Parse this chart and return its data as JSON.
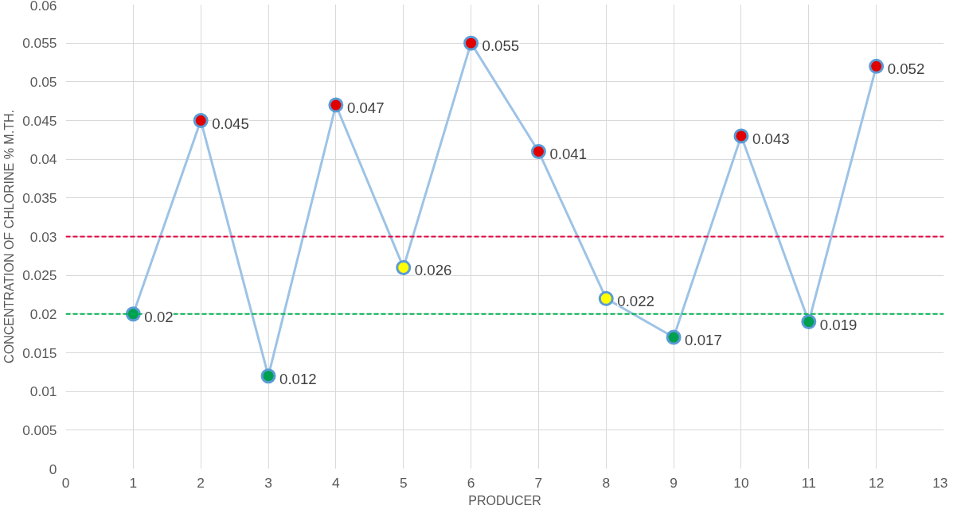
{
  "chart_data": {
    "type": "line",
    "xlabel": "PRODUCER",
    "ylabel": "CONCENTRATION OF CHLORINE % M.TH.",
    "x": [
      1,
      2,
      3,
      4,
      5,
      6,
      7,
      8,
      9,
      10,
      11,
      12
    ],
    "series": [
      {
        "color": "#9dc3e6",
        "values": [
          0.02,
          0.045,
          0.012,
          0.047,
          0.026,
          0.055,
          0.041,
          0.022,
          0.017,
          0.043,
          0.019,
          0.052
        ],
        "colors": [
          "#00a050",
          "#e00000",
          "#00a050",
          "#e00000",
          "#ffff00",
          "#e00000",
          "#e00000",
          "#ffff00",
          "#00a050",
          "#e00000",
          "#00a050",
          "#e00000"
        ]
      }
    ],
    "marker": "circle",
    "data_labels": true,
    "grid": true,
    "xlim": [
      0,
      13
    ],
    "xticks": [
      0,
      1,
      2,
      3,
      4,
      5,
      6,
      7,
      8,
      9,
      10,
      11,
      12,
      13
    ],
    "ylim": [
      0,
      0.06
    ],
    "yticks": [
      0,
      0.005,
      0.01,
      0.015,
      0.02,
      0.025,
      0.03,
      0.035,
      0.04,
      0.045,
      0.05,
      0.055,
      0.06
    ],
    "ref_lines": [
      {
        "axis": "y",
        "value": 0.03,
        "color": "#e0003c",
        "line_style": "dashed"
      },
      {
        "axis": "y",
        "value": 0.02,
        "color": "#00b050",
        "line_style": "dashed"
      }
    ]
  }
}
